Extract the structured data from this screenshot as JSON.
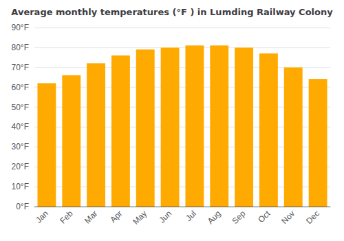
{
  "chart_data": {
    "type": "bar",
    "title": "Average monthly temperatures (°F ) in Lumding Railway Colony",
    "categories": [
      "Jan",
      "Feb",
      "Mar",
      "Apr",
      "May",
      "Jun",
      "Jul",
      "Aug",
      "Sep",
      "Oct",
      "Nov",
      "Dec"
    ],
    "values": [
      62,
      66,
      72,
      76,
      79,
      80,
      81,
      81,
      80,
      77,
      70,
      64
    ],
    "color": "#FFAA00",
    "ylim": [
      0,
      90
    ],
    "yticks": [
      {
        "value": 0,
        "label": "0°F"
      },
      {
        "value": 10,
        "label": "10°F"
      },
      {
        "value": 20,
        "label": "20°F"
      },
      {
        "value": 30,
        "label": "30°F"
      },
      {
        "value": 40,
        "label": "40°F"
      },
      {
        "value": 50,
        "label": "50°F"
      },
      {
        "value": 60,
        "label": "60°F"
      },
      {
        "value": 70,
        "label": "70°F"
      },
      {
        "value": 80,
        "label": "80°F"
      },
      {
        "value": 90,
        "label": "90°F"
      }
    ],
    "grid": true
  }
}
